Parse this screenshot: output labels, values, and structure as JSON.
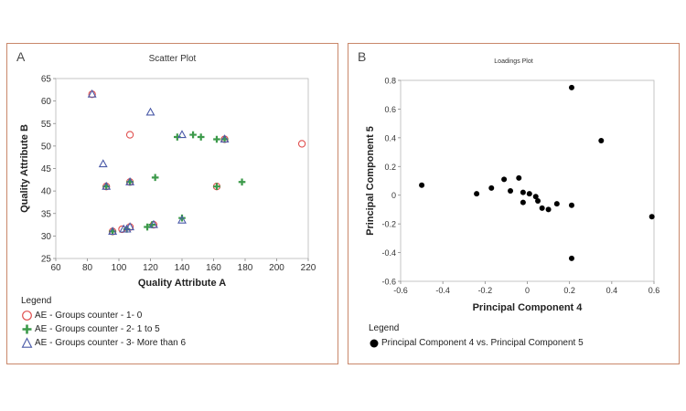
{
  "panels": {
    "a": {
      "letter": "A"
    },
    "b": {
      "letter": "B"
    }
  },
  "chart_data": [
    {
      "type": "scatter",
      "title": "Scatter Plot",
      "xlabel": "Quality Attribute A",
      "ylabel": "Quality Attribute B",
      "xlim": [
        60,
        220
      ],
      "ylim": [
        25,
        65
      ],
      "xticks": [
        60,
        80,
        100,
        120,
        140,
        160,
        180,
        200,
        220
      ],
      "yticks": [
        25,
        30,
        35,
        40,
        45,
        50,
        55,
        60,
        65
      ],
      "legend_title": "Legend",
      "legend_position": "bottom-left",
      "colors": {
        "circle": "#e0504f",
        "plus": "#3c9a4a",
        "triangle": "#4a5aa8"
      },
      "series": [
        {
          "name": "AE - Groups counter - 1- 0",
          "marker": "circle",
          "points": [
            [
              83,
              61.5
            ],
            [
              107,
              52.5
            ],
            [
              92,
              41
            ],
            [
              107,
              42
            ],
            [
              162,
              41
            ],
            [
              96,
              31
            ],
            [
              102,
              31.5
            ],
            [
              107,
              32
            ],
            [
              122,
              32.5
            ],
            [
              167,
              51.5
            ],
            [
              216,
              50.5
            ]
          ]
        },
        {
          "name": "AE - Groups counter - 2- 1 to 5",
          "marker": "plus",
          "points": [
            [
              123,
              43
            ],
            [
              178,
              42
            ],
            [
              137,
              52
            ],
            [
              147,
              52.5
            ],
            [
              152,
              52
            ],
            [
              162,
              51.5
            ],
            [
              167,
              51.5
            ],
            [
              107,
              42
            ],
            [
              162,
              41
            ],
            [
              105,
              31.5
            ],
            [
              118,
              32
            ],
            [
              121,
              32.5
            ],
            [
              140,
              34
            ],
            [
              92,
              41
            ],
            [
              96,
              31
            ]
          ]
        },
        {
          "name": "AE - Groups counter - 3- More than 6",
          "marker": "triangle",
          "points": [
            [
              83,
              61.5
            ],
            [
              120,
              57.5
            ],
            [
              90,
              46
            ],
            [
              140,
              52.5
            ],
            [
              167,
              51.5
            ],
            [
              107,
              42
            ],
            [
              92,
              41
            ],
            [
              103,
              31.5
            ],
            [
              105,
              31.5
            ],
            [
              107,
              32
            ],
            [
              122,
              32.5
            ],
            [
              140,
              33.5
            ],
            [
              96,
              31
            ]
          ]
        }
      ]
    },
    {
      "type": "scatter",
      "title": "Loadings Plot",
      "xlabel": "Principal Component 4",
      "ylabel": "Principal Component 5",
      "xlim": [
        -0.6,
        0.6
      ],
      "ylim": [
        -0.6,
        0.8
      ],
      "xticks": [
        "-0.6",
        "-0.4",
        "-0.2",
        "0",
        "0.2",
        "0.4",
        "0.6"
      ],
      "yticks": [
        "-0.6",
        "-0.4",
        "-0.2",
        "0",
        "0.2",
        "0.4",
        "0.6",
        "0.8"
      ],
      "legend_title": "Legend",
      "legend_position": "bottom-left",
      "colors": {
        "point": "#000000"
      },
      "series": [
        {
          "name": "Principal Component 4 vs. Principal Component 5",
          "marker": "dot",
          "points": [
            [
              -0.5,
              0.07
            ],
            [
              -0.24,
              0.01
            ],
            [
              -0.17,
              0.05
            ],
            [
              -0.11,
              0.11
            ],
            [
              -0.08,
              0.03
            ],
            [
              -0.04,
              0.12
            ],
            [
              -0.02,
              0.02
            ],
            [
              -0.02,
              -0.05
            ],
            [
              0.01,
              0.01
            ],
            [
              0.04,
              -0.01
            ],
            [
              0.05,
              -0.04
            ],
            [
              0.07,
              -0.09
            ],
            [
              0.1,
              -0.1
            ],
            [
              0.14,
              -0.06
            ],
            [
              0.21,
              -0.07
            ],
            [
              0.21,
              0.75
            ],
            [
              0.21,
              -0.44
            ],
            [
              0.35,
              0.38
            ],
            [
              0.59,
              -0.15
            ]
          ]
        }
      ]
    }
  ]
}
